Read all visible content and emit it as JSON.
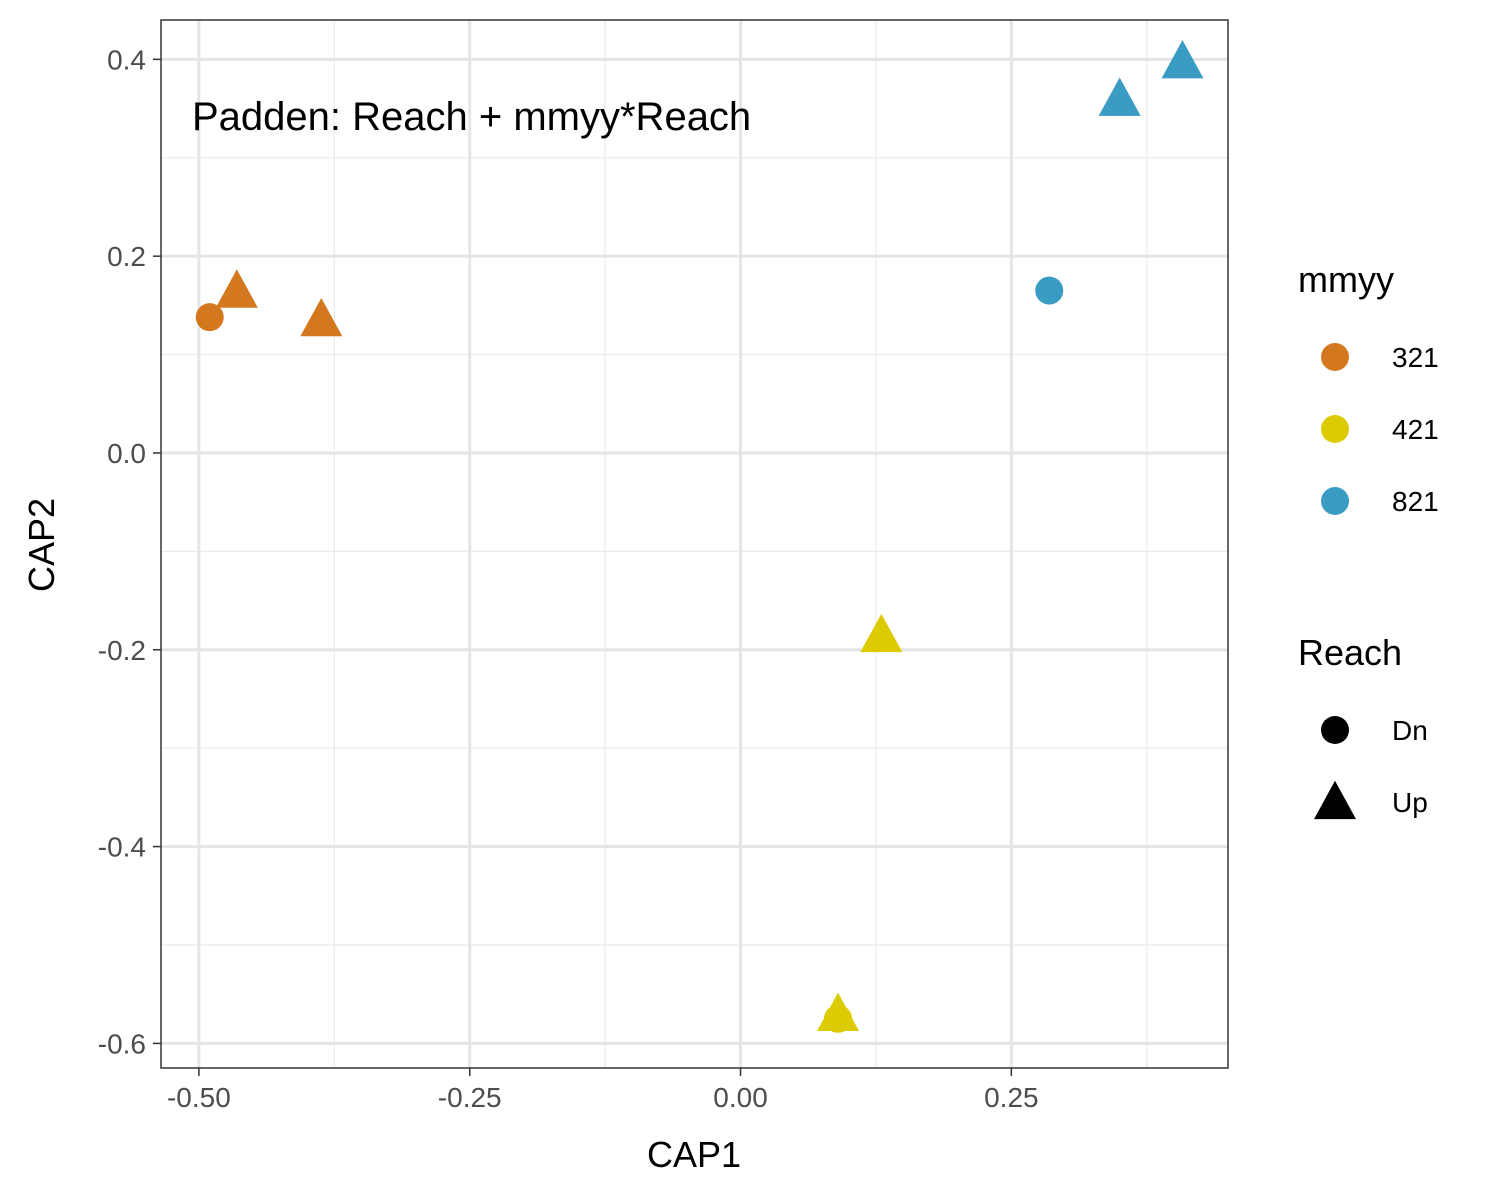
{
  "chart_data": {
    "type": "scatter",
    "annotation": "Padden: Reach + mmyy*Reach",
    "xlabel": "CAP1",
    "ylabel": "CAP2",
    "xlim": [
      -0.535,
      0.45
    ],
    "ylim": [
      -0.625,
      0.44
    ],
    "x_ticks": [
      -0.5,
      -0.25,
      0.0,
      0.25
    ],
    "x_tick_labels": [
      "-0.50",
      "-0.25",
      "0.00",
      "0.25"
    ],
    "y_ticks": [
      0.4,
      0.2,
      0.0,
      -0.2,
      -0.4,
      -0.6
    ],
    "y_tick_labels": [
      "0.4",
      "0.2",
      "0.0",
      "-0.2",
      "-0.4",
      "-0.6"
    ],
    "grid": true,
    "legend_position": "right",
    "colors": {
      "321": "#D4781F",
      "421": "#DCCB00",
      "821": "#3A9CC2"
    },
    "legends": [
      {
        "title": "mmyy",
        "entries": [
          {
            "label": "321",
            "color": "#D4781F",
            "shape": "circle"
          },
          {
            "label": "421",
            "color": "#DCCB00",
            "shape": "circle"
          },
          {
            "label": "821",
            "color": "#3A9CC2",
            "shape": "circle"
          }
        ]
      },
      {
        "title": "Reach",
        "entries": [
          {
            "label": "Dn",
            "color": "#000000",
            "shape": "circle"
          },
          {
            "label": "Up",
            "color": "#000000",
            "shape": "triangle"
          }
        ]
      }
    ],
    "points": [
      {
        "x": -0.49,
        "y": 0.138,
        "mmyy": "321",
        "reach": "Dn"
      },
      {
        "x": -0.465,
        "y": 0.165,
        "mmyy": "321",
        "reach": "Up"
      },
      {
        "x": -0.387,
        "y": 0.136,
        "mmyy": "321",
        "reach": "Up"
      },
      {
        "x": 0.09,
        "y": -0.575,
        "mmyy": "421",
        "reach": "Dn"
      },
      {
        "x": 0.09,
        "y": -0.57,
        "mmyy": "421",
        "reach": "Up"
      },
      {
        "x": 0.13,
        "y": -0.185,
        "mmyy": "421",
        "reach": "Up"
      },
      {
        "x": 0.285,
        "y": 0.165,
        "mmyy": "821",
        "reach": "Dn"
      },
      {
        "x": 0.35,
        "y": 0.36,
        "mmyy": "821",
        "reach": "Up"
      },
      {
        "x": 0.408,
        "y": 0.398,
        "mmyy": "821",
        "reach": "Up"
      }
    ]
  }
}
